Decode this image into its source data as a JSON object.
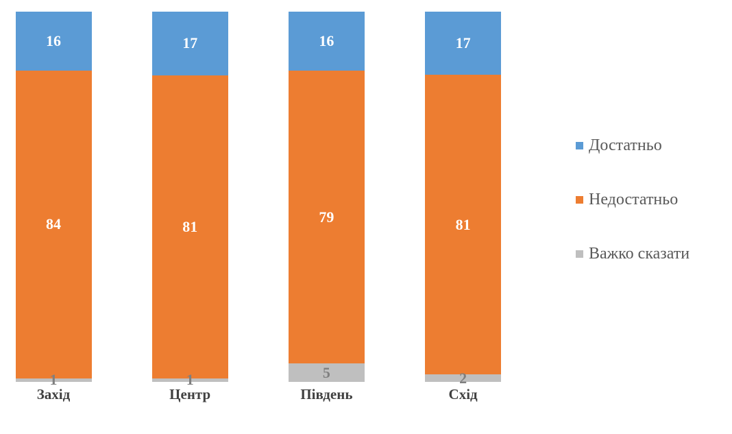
{
  "chart_data": {
    "type": "bar",
    "variant": "100-percent-stacked-column",
    "title": "",
    "xlabel": "",
    "ylabel": "",
    "grid": false,
    "axes_visible": false,
    "categories": [
      "Захід",
      "Центр",
      "Південь",
      "Схід"
    ],
    "series": [
      {
        "name": "Достатньо",
        "color": "#5B9BD5",
        "label_color": "#FFFFFF",
        "values": [
          16,
          17,
          16,
          17
        ]
      },
      {
        "name": "Недостатньо",
        "color": "#ED7D31",
        "label_color": "#FFFFFF",
        "values": [
          84,
          81,
          79,
          81
        ]
      },
      {
        "name": "Важко сказати",
        "color": "#BFBFBF",
        "label_color": "#7F7F7F",
        "values": [
          1,
          1,
          5,
          2
        ]
      }
    ],
    "legend": {
      "position": "right",
      "entries": [
        "Достатньо",
        "Недостатньо",
        "Важко сказати"
      ]
    }
  },
  "styles": {
    "background": "#FFFFFF",
    "category_label_color": "#404040",
    "legend_text_color": "#595959"
  }
}
